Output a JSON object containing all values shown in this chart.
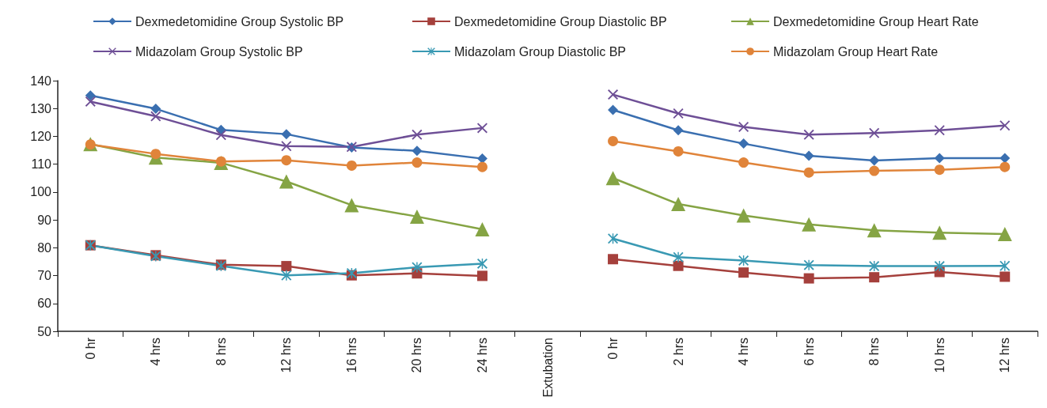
{
  "chart_data": {
    "type": "line",
    "categories": [
      "0 hr",
      "4 hrs",
      "8 hrs",
      "12 hrs",
      "16 hrs",
      "20 hrs",
      "24 hrs",
      "Extubation",
      "0 hr",
      "2 hrs",
      "4 hrs",
      "6 hrs",
      "8 hrs",
      "10 hrs",
      "12 hrs"
    ],
    "series": [
      {
        "name": "Dexmedetomidine Group Systolic BP",
        "color": "#3a6fb0",
        "marker": "diamond",
        "values": [
          134.7,
          129.9,
          122.3,
          120.8,
          116,
          114.8,
          112,
          null,
          129.5,
          122.2,
          117.4,
          113,
          111.3,
          112.2,
          112.2
        ]
      },
      {
        "name": "Dexmedetomidine Group Diastolic BP",
        "color": "#a5403c",
        "marker": "square",
        "values": [
          80.9,
          77.3,
          73.9,
          73.4,
          70.1,
          70.8,
          69.9,
          null,
          75.9,
          73.5,
          71.1,
          69,
          69.4,
          71.3,
          69.6
        ]
      },
      {
        "name": "Dexmedetomidine Group Heart Rate",
        "color": "#85a444",
        "marker": "triangle",
        "values": [
          117.2,
          112.4,
          110.5,
          103.8,
          95.3,
          91.2,
          86.6,
          null,
          105,
          95.7,
          91.6,
          88.4,
          86.3,
          85.4,
          84.9
        ]
      },
      {
        "name": "Midazolam Group Systolic BP",
        "color": "#6e4f96",
        "marker": "cross",
        "values": [
          132.5,
          127.2,
          120.5,
          116.5,
          116.2,
          120.6,
          123,
          null,
          135,
          128.2,
          123.4,
          120.6,
          121.2,
          122.2,
          123.9
        ]
      },
      {
        "name": "Midazolam Group Diastolic BP",
        "color": "#3999b3",
        "marker": "star",
        "values": [
          80.9,
          77,
          73.5,
          70.1,
          70.9,
          73,
          74.3,
          null,
          83.3,
          76.6,
          75.4,
          73.8,
          73.4,
          73.4,
          73.5
        ]
      },
      {
        "name": "Midazolam Group Heart Rate",
        "color": "#e0843a",
        "marker": "circle",
        "values": [
          117.1,
          113.7,
          111,
          111.4,
          109.5,
          110.6,
          109,
          null,
          118.3,
          114.6,
          110.6,
          107,
          107.6,
          108,
          109
        ]
      }
    ],
    "ylim": [
      50,
      140
    ],
    "yticks": [
      50,
      60,
      70,
      80,
      90,
      100,
      110,
      120,
      130,
      140
    ],
    "grid": false,
    "legend": "top"
  }
}
